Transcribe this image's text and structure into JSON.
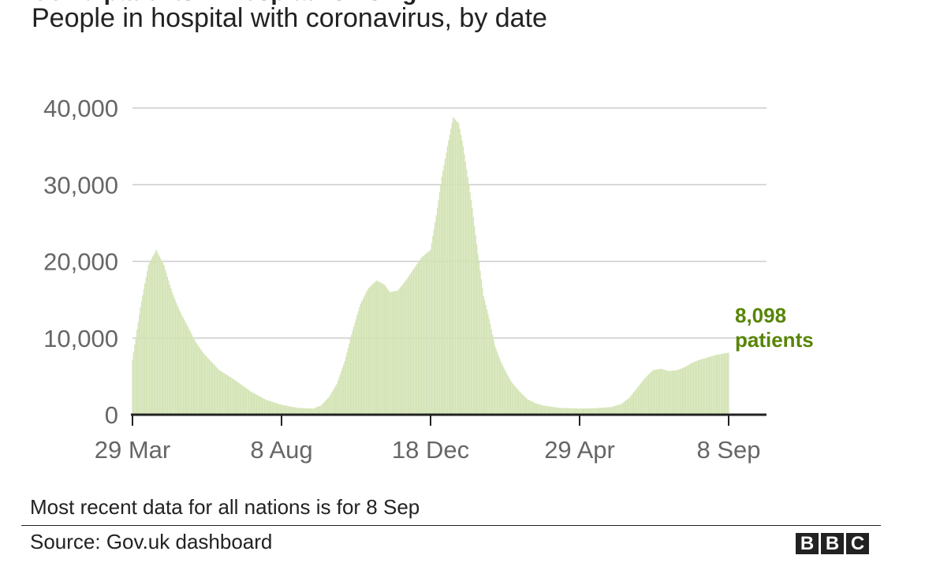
{
  "header": {
    "title_partial": "Covid patients in hospital is rising",
    "subtitle": "People in hospital with coronavirus, by date"
  },
  "chart_data": {
    "type": "bar",
    "x_start": "29 Mar",
    "x_end": "8 Sep",
    "xticks": [
      "29 Mar",
      "8 Aug",
      "18 Dec",
      "29 Apr",
      "8 Sep"
    ],
    "yticks": [
      "0",
      "10,000",
      "20,000",
      "30,000",
      "40,000"
    ],
    "ylim": [
      0,
      40000
    ],
    "grid": true,
    "bar_color": "#d2e3b2",
    "annotation_color": "#588506",
    "latest": {
      "value_label": "8,098",
      "unit_label": "patients",
      "value": 8098
    },
    "daily_values_interpolated_from_keypoints": {
      "dates": [
        "29 Mar",
        "5 Apr",
        "12 Apr",
        "19 Apr",
        "26 Apr",
        "3 May",
        "10 May",
        "17 May",
        "24 May",
        "31 May",
        "14 Jun",
        "28 Jun",
        "12 Jul",
        "26 Jul",
        "8 Aug",
        "22 Aug",
        "5 Sep",
        "12 Sep",
        "19 Sep",
        "26 Sep",
        "3 Oct",
        "10 Oct",
        "17 Oct",
        "24 Oct",
        "31 Oct",
        "7 Nov",
        "12 Nov",
        "19 Nov",
        "26 Nov",
        "3 Dec",
        "10 Dec",
        "18 Dec",
        "23 Dec",
        "28 Dec",
        "2 Jan",
        "7 Jan",
        "12 Jan",
        "16 Jan",
        "19 Jan",
        "24 Jan",
        "29 Jan",
        "3 Feb",
        "8 Feb",
        "13 Feb",
        "18 Feb",
        "23 Feb",
        "28 Feb",
        "7 Mar",
        "14 Mar",
        "21 Mar",
        "28 Mar",
        "11 Apr",
        "29 Apr",
        "13 May",
        "27 May",
        "5 Jun",
        "12 Jun",
        "19 Jun",
        "26 Jun",
        "3 Jul",
        "10 Jul",
        "17 Jul",
        "24 Jul",
        "31 Jul",
        "7 Aug",
        "14 Aug",
        "21 Aug",
        "28 Aug",
        "8 Sep"
      ],
      "values": [
        7200,
        14000,
        19500,
        21500,
        19500,
        16000,
        13500,
        11500,
        9500,
        8000,
        5800,
        4500,
        3000,
        1900,
        1300,
        900,
        800,
        1200,
        2300,
        4000,
        7000,
        11000,
        14500,
        16500,
        17500,
        17000,
        16000,
        16200,
        17500,
        19000,
        20500,
        21500,
        26000,
        31000,
        35000,
        38800,
        38000,
        35000,
        32000,
        27000,
        21000,
        15500,
        12500,
        9000,
        7000,
        5500,
        4200,
        3000,
        2000,
        1500,
        1200,
        900,
        800,
        850,
        1000,
        1400,
        2200,
        3500,
        4800,
        5800,
        6000,
        5700,
        5800,
        6200,
        6800,
        7200,
        7500,
        7800,
        8098
      ]
    },
    "note": "Most recent data for all nations is for 8 Sep",
    "source": "Source: Gov.uk dashboard"
  },
  "logo": {
    "letters": [
      "B",
      "B",
      "C"
    ]
  }
}
